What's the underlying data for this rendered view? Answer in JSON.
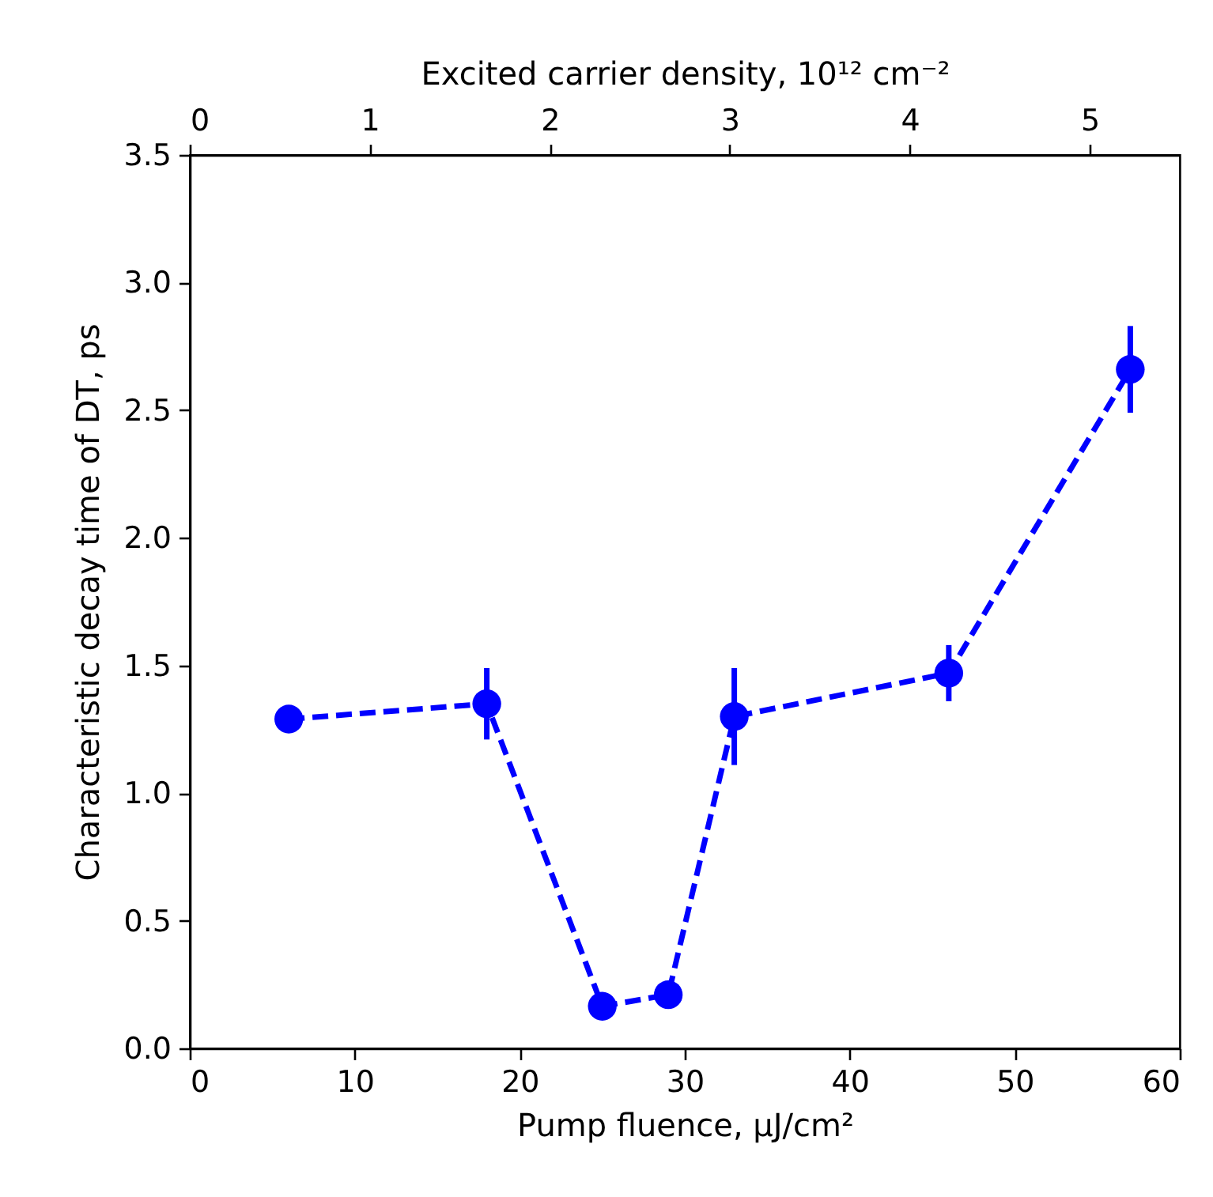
{
  "chart_data": {
    "type": "line",
    "xlabel": "Pump fluence, μJ/cm²",
    "ylabel": "Characteristic decay time of DT, ps",
    "x2label": "Excited carrier density, 10¹² cm⁻²",
    "x": [
      6,
      18,
      25,
      29,
      33,
      46,
      57
    ],
    "series": [
      {
        "color": "#0000ff",
        "values": [
          1.29,
          1.35,
          0.165,
          0.21,
          1.3,
          1.47,
          2.66
        ],
        "errors": [
          null,
          0.14,
          null,
          null,
          0.19,
          0.11,
          0.17
        ]
      }
    ],
    "xlim": [
      0,
      60
    ],
    "xticks": [
      0,
      10,
      20,
      30,
      40,
      50,
      60
    ],
    "ylim": [
      0,
      3.5
    ],
    "yticks": [
      {
        "value": 0,
        "label": "0.0"
      },
      0.5,
      {
        "value": 1,
        "label": "1.0"
      },
      1.5,
      {
        "value": 2,
        "label": "2.0"
      },
      2.5,
      {
        "value": 3,
        "label": "3.0"
      },
      3.5
    ],
    "x2lim": [
      0,
      5.5
    ],
    "x2ticks": [
      0,
      1,
      2,
      3,
      4,
      5
    ],
    "marker": "circle",
    "line_style": "dashed",
    "grid": false
  }
}
